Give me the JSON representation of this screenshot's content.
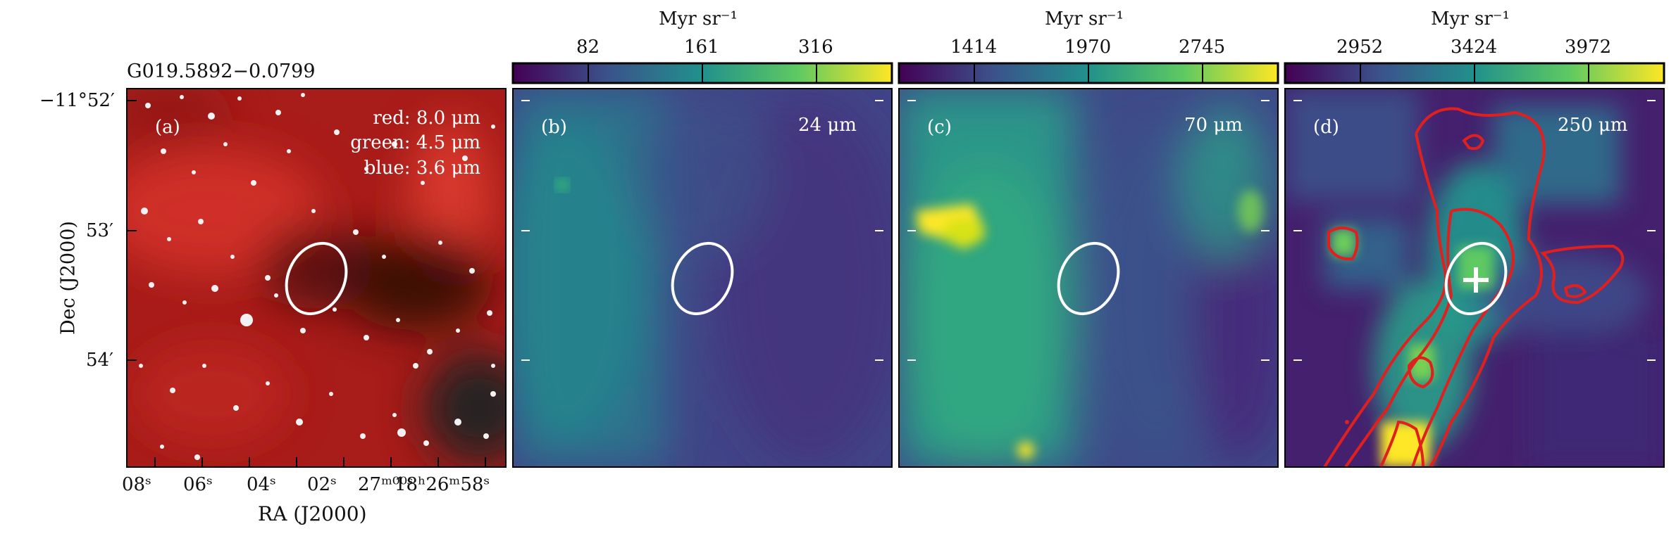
{
  "figure": {
    "source_name": "G019.5892−0.0799",
    "ylabel": "Dec (J2000)",
    "xlabel": "RA (J2000)",
    "dec_ticks": [
      "−11°52′",
      "53′",
      "54′"
    ],
    "ra_ticks": [
      "08ˢ",
      "06ˢ",
      "04ˢ",
      "02ˢ",
      "27ᵐ⁰⁰ˢ",
      "18ʰ26ᵐ58ˢ"
    ],
    "colors": {
      "rgb_base": "#b8201c",
      "viridis_low": "#440154",
      "viridis_mid": "#21918c",
      "viridis_high": "#fde725",
      "contour": "#e0201f",
      "marker": "#ffffff"
    }
  },
  "panels": [
    {
      "tag": "(a)",
      "type": "rgb",
      "rgb_legend": [
        "red: 8.0 μm",
        "green: 4.5 μm",
        "blue: 3.6 μm"
      ]
    },
    {
      "tag": "(b)",
      "band": "24 μm",
      "colorbar": {
        "label": "Myr sr⁻¹",
        "ticks": [
          "82",
          "161",
          "316"
        ],
        "colormap": "viridis"
      }
    },
    {
      "tag": "(c)",
      "band": "70 μm",
      "colorbar": {
        "label": "Myr sr⁻¹",
        "ticks": [
          "1414",
          "1970",
          "2745"
        ],
        "colormap": "viridis"
      }
    },
    {
      "tag": "(d)",
      "band": "250 μm",
      "colorbar": {
        "label": "Myr sr⁻¹",
        "ticks": [
          "2952",
          "3424",
          "3972"
        ],
        "colormap": "viridis"
      },
      "overlays": [
        "red-contours",
        "plus-marker"
      ]
    }
  ]
}
